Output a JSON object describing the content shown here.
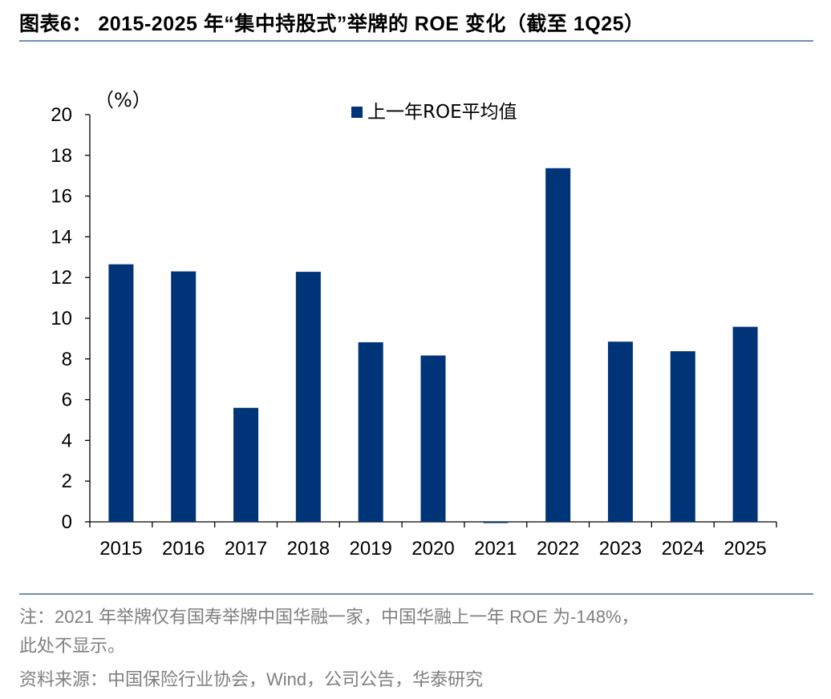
{
  "figure": {
    "title": "图表6： 2015-2025 年“集中持股式”举牌的 ROE 变化（截至 1Q25）"
  },
  "chart_data": {
    "type": "bar",
    "title": "",
    "ylabel": "（%）",
    "xlabel": "",
    "ylim": [
      0,
      20
    ],
    "yticks": [
      "0",
      "2",
      "4",
      "6",
      "8",
      "10",
      "12",
      "14",
      "16",
      "18",
      "20"
    ],
    "categories": [
      "2015",
      "2016",
      "2017",
      "2018",
      "2019",
      "2020",
      "2021",
      "2022",
      "2023",
      "2024",
      "2025"
    ],
    "series": [
      {
        "name": "上一年ROE平均值",
        "color": "#003479",
        "values": [
          12.65,
          12.3,
          5.6,
          12.28,
          8.82,
          8.17,
          -0.05,
          17.37,
          8.85,
          8.38,
          9.58
        ]
      }
    ],
    "legend_position": "top-center",
    "grid": false
  },
  "notes": {
    "line1": "注：2021 年举牌仅有国寿举牌中国华融一家，中国华融上一年 ROE 为-148%，",
    "line2": "此处不显示。",
    "source": "资料来源：中国保险行业协会，Wind，公司公告，华泰研究"
  },
  "colors": {
    "bar": "#003479",
    "rule": "#6f8fb8",
    "note_text": "#7f7f7f"
  }
}
